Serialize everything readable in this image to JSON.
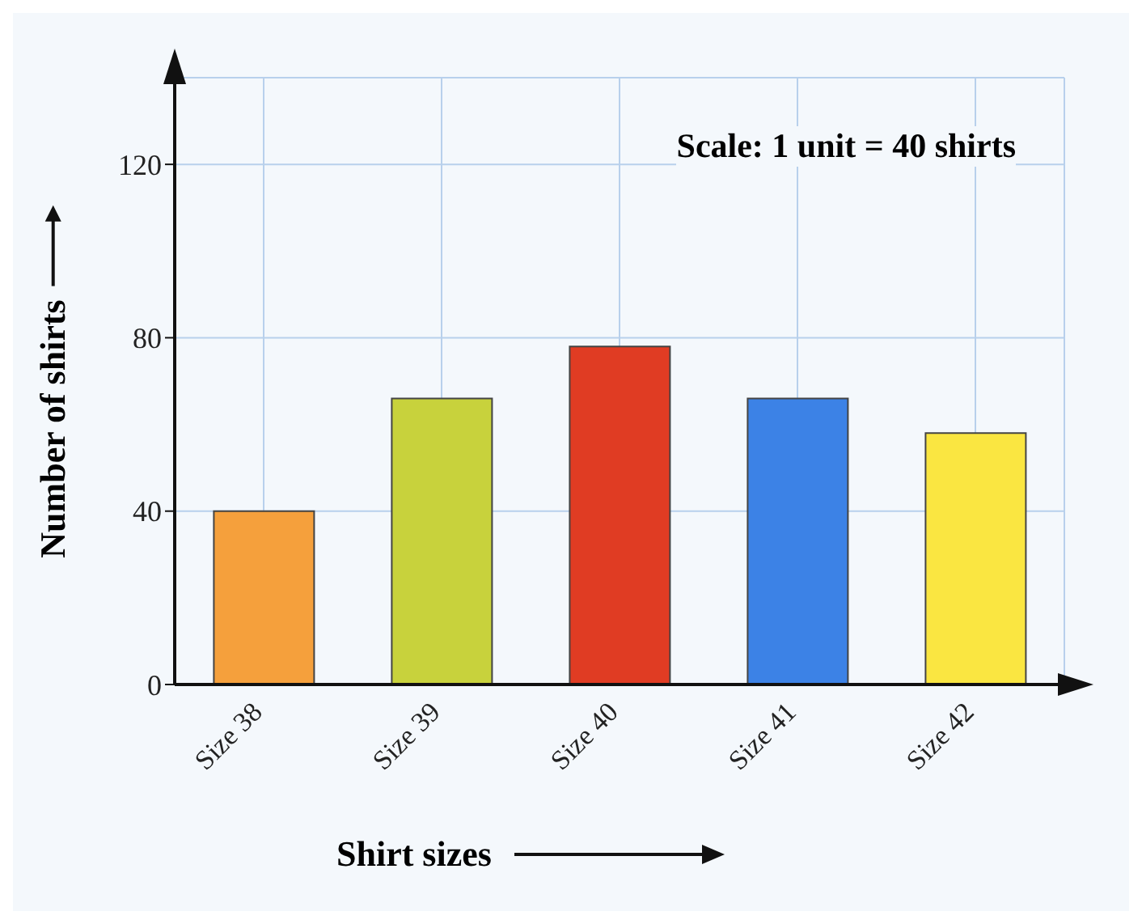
{
  "chart_data": {
    "type": "bar",
    "xlabel": "Shirt sizes",
    "ylabel": "Number of shirts",
    "annotations": [
      "Scale: 1 unit = 40 shirts"
    ],
    "categories": [
      "Size 38",
      "Size 39",
      "Size 40",
      "Size 41",
      "Size 42"
    ],
    "values": [
      40,
      66,
      78,
      66,
      58
    ],
    "colors": [
      "#f5a03c",
      "#c8d23c",
      "#e03c23",
      "#3c82e6",
      "#fae641"
    ],
    "ylim": [
      0,
      140
    ],
    "yticks": [
      0,
      40,
      80,
      120
    ],
    "grid": true
  }
}
